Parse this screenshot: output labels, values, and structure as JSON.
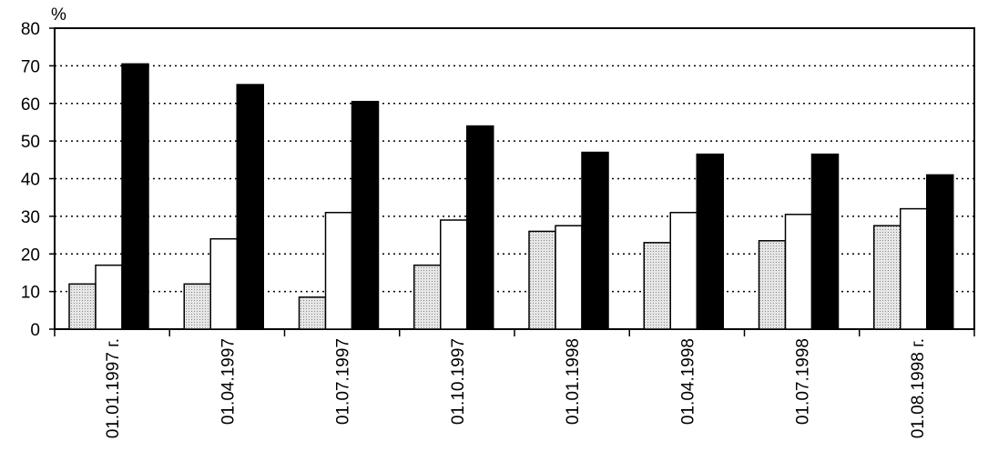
{
  "chart_data": {
    "type": "bar",
    "y_label": "%",
    "categories": [
      "01.01.1997 г.",
      "01.04.1997",
      "01.07.1997",
      "01.10.1997",
      "01.01.1998",
      "01.04.1998",
      "01.07.1998",
      "01.08.1998 г."
    ],
    "series": [
      {
        "color": "#d4d4d4",
        "values": [
          12,
          12,
          8.5,
          17,
          26,
          23,
          23.5,
          27.5
        ]
      },
      {
        "color": "#ffffff",
        "values": [
          17,
          24,
          31,
          29,
          27.5,
          31,
          30.5,
          32
        ]
      },
      {
        "color": "#000000",
        "values": [
          70.5,
          65,
          60.5,
          54,
          47,
          46.5,
          46.5,
          41
        ]
      }
    ],
    "ylim": [
      0,
      80
    ],
    "yticks": [
      0,
      10,
      20,
      30,
      40,
      50,
      60,
      70,
      80
    ],
    "grid": true
  }
}
